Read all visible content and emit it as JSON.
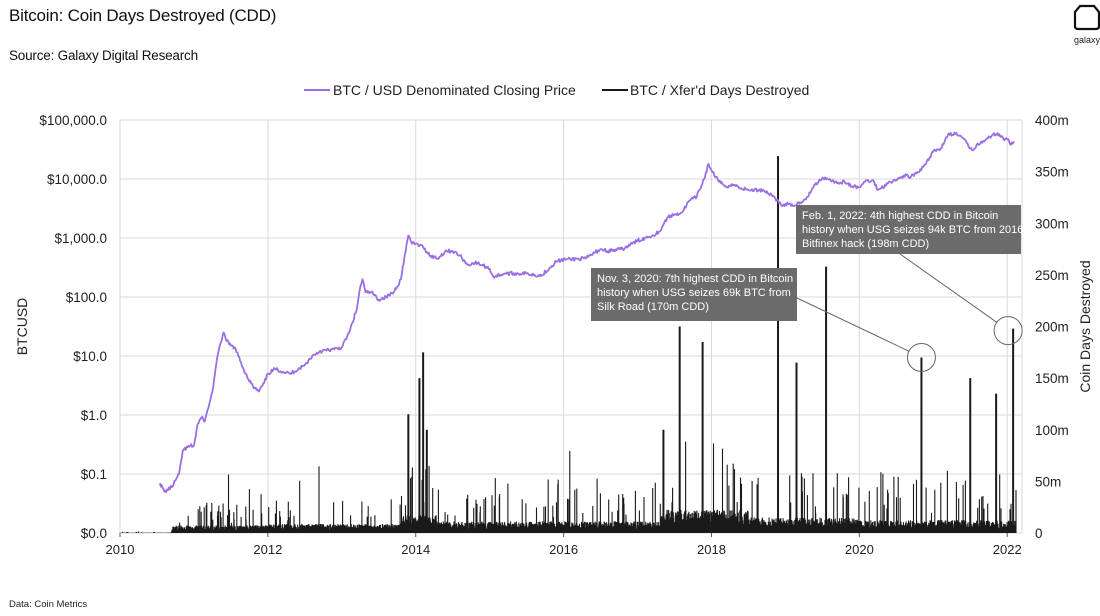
{
  "header": {
    "title": "Bitcoin: Coin Days Destroyed (CDD)",
    "source": "Source: Galaxy Digital Research",
    "footnote": "Data: Coin Metrics",
    "logo_text": "galaxy"
  },
  "colors": {
    "price": "#9b6fe3",
    "cdd": "#1a1a1a",
    "callout_bg": "#6b6b6b",
    "grid": "#d9d9d9"
  },
  "chart_data": {
    "type": "line",
    "legend": [
      {
        "name": "BTC / USD Denominated Closing Price"
      },
      {
        "name": "BTC / Xfer'd Days Destroyed"
      }
    ],
    "legend_position": "top-center",
    "grid": true,
    "x_ticks": [
      "2010",
      "2012",
      "2014",
      "2016",
      "2018",
      "2020",
      "2022"
    ],
    "xlim": [
      2010,
      2022.2
    ],
    "y_left": {
      "label": "BTCUSD",
      "scale": "log",
      "ticks": [
        "$0.0",
        "$0.1",
        "$1.0",
        "$10.0",
        "$100.0",
        "$1,000.0",
        "$10,000.0",
        "$100,000.0"
      ],
      "tick_values": [
        0.01,
        0.1,
        1,
        10,
        100,
        1000,
        10000,
        100000
      ]
    },
    "y_right": {
      "label": "Coin Days Destroyed",
      "ticks": [
        "0",
        "50m",
        "100m",
        "150m",
        "200m",
        "250m",
        "300m",
        "350m",
        "400m"
      ],
      "ylim": [
        0,
        400
      ]
    },
    "series": [
      {
        "name": "BTC / USD Denominated Closing Price",
        "axis": "left",
        "x": [
          2010.54,
          2010.6,
          2010.7,
          2010.8,
          2010.85,
          2010.95,
          2011.0,
          2011.05,
          2011.1,
          2011.15,
          2011.25,
          2011.3,
          2011.35,
          2011.4,
          2011.44,
          2011.5,
          2011.55,
          2011.6,
          2011.7,
          2011.8,
          2011.88,
          2011.95,
          2012.0,
          2012.1,
          2012.3,
          2012.5,
          2012.6,
          2012.7,
          2012.9,
          2013.0,
          2013.1,
          2013.2,
          2013.25,
          2013.28,
          2013.32,
          2013.4,
          2013.5,
          2013.6,
          2013.7,
          2013.8,
          2013.85,
          2013.9,
          2013.92,
          2013.95,
          2014.0,
          2014.1,
          2014.2,
          2014.3,
          2014.4,
          2014.5,
          2014.6,
          2014.7,
          2014.8,
          2014.9,
          2015.0,
          2015.05,
          2015.2,
          2015.5,
          2015.7,
          2015.9,
          2016.0,
          2016.3,
          2016.5,
          2016.6,
          2016.8,
          2017.0,
          2017.1,
          2017.2,
          2017.3,
          2017.4,
          2017.5,
          2017.6,
          2017.7,
          2017.8,
          2017.9,
          2017.96,
          2018.0,
          2018.1,
          2018.2,
          2018.3,
          2018.4,
          2018.5,
          2018.7,
          2018.85,
          2018.95,
          2019.0,
          2019.1,
          2019.2,
          2019.3,
          2019.4,
          2019.5,
          2019.6,
          2019.7,
          2019.8,
          2019.9,
          2020.0,
          2020.1,
          2020.2,
          2020.25,
          2020.3,
          2020.4,
          2020.5,
          2020.6,
          2020.7,
          2020.8,
          2020.9,
          2021.0,
          2021.1,
          2021.2,
          2021.3,
          2021.4,
          2021.5,
          2021.55,
          2021.6,
          2021.7,
          2021.8,
          2021.87,
          2021.95,
          2022.0,
          2022.05,
          2022.1
        ],
        "values": [
          0.07,
          0.05,
          0.06,
          0.1,
          0.25,
          0.3,
          0.3,
          0.7,
          0.9,
          0.8,
          2.5,
          7,
          15,
          25,
          18,
          15,
          14,
          10,
          5,
          3,
          2.5,
          3.5,
          5,
          6,
          5,
          7,
          10,
          12,
          13,
          14,
          25,
          60,
          150,
          200,
          120,
          120,
          90,
          100,
          120,
          200,
          500,
          1100,
          1000,
          800,
          800,
          700,
          500,
          450,
          600,
          600,
          500,
          350,
          380,
          350,
          300,
          220,
          250,
          250,
          230,
          400,
          430,
          450,
          650,
          600,
          650,
          900,
          1000,
          1100,
          1300,
          2200,
          2500,
          2700,
          4300,
          5000,
          10000,
          18000,
          14000,
          9000,
          7500,
          8000,
          7000,
          6500,
          6500,
          5000,
          3500,
          3800,
          3500,
          4000,
          5000,
          8000,
          10500,
          10000,
          8500,
          9000,
          7500,
          7200,
          9500,
          9000,
          6500,
          7000,
          9000,
          9500,
          11500,
          11000,
          13000,
          18000,
          29000,
          33000,
          57000,
          58000,
          50000,
          33000,
          32000,
          40000,
          45000,
          55000,
          60000,
          48000,
          47000,
          38000,
          42000
        ]
      },
      {
        "name": "BTC / Xfer'd Days Destroyed",
        "axis": "right",
        "type": "spikes",
        "x": [
          2013.9,
          2014.05,
          2014.1,
          2014.15,
          2017.35,
          2017.57,
          2017.88,
          2018.9,
          2019.15,
          2019.55,
          2020.84,
          2021.5,
          2021.85,
          2022.08
        ],
        "values": [
          115,
          150,
          175,
          100,
          100,
          200,
          185,
          365,
          165,
          258,
          170,
          150,
          135,
          198
        ]
      }
    ],
    "annotations": [
      {
        "lines": [
          "Nov. 3, 2020: 7th highest CDD in Bitcoin",
          "history when USG seizes 69k BTC from",
          "Silk Road (170m CDD)"
        ]
      },
      {
        "lines": [
          "Feb. 1, 2022: 4th highest CDD in Bitcoin",
          "history when USG seizes 94k BTC from 2016",
          "Bitfinex hack (198m CDD)"
        ]
      }
    ]
  }
}
